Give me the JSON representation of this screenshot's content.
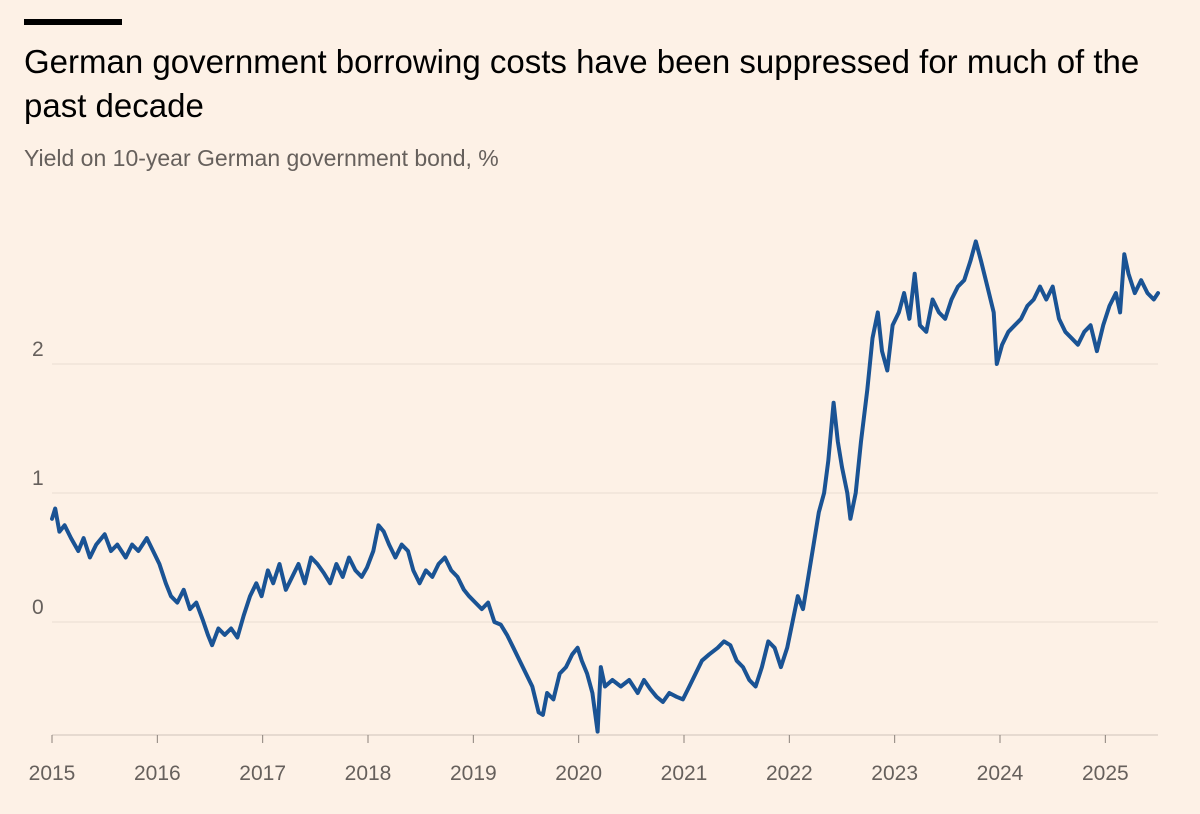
{
  "title": "German government borrowing costs have been suppressed for much of the past decade",
  "subtitle": "Yield on 10-year German government bond, %",
  "colors": {
    "background": "#fdf1e6",
    "line": "#1a5394",
    "gridline": "#e9ddd3",
    "text": "#66605c"
  },
  "chart_data": {
    "type": "line",
    "title": "German government borrowing costs have been suppressed for much of the past decade",
    "subtitle": "Yield on 10-year German government bond, %",
    "xlabel": "",
    "ylabel": "",
    "x_ticks": [
      "2015",
      "2016",
      "2017",
      "2018",
      "2019",
      "2020",
      "2021",
      "2022",
      "2023",
      "2024",
      "2025"
    ],
    "y_ticks": [
      "0",
      "1",
      "2"
    ],
    "ylim": [
      -0.9,
      3.1
    ],
    "xlim": [
      2015.0,
      2025.5
    ],
    "grid": true,
    "legend": "none",
    "series": [
      {
        "values": [
          [
            2015.0,
            0.8
          ],
          [
            2015.03,
            0.88
          ],
          [
            2015.07,
            0.7
          ],
          [
            2015.12,
            0.75
          ],
          [
            2015.18,
            0.65
          ],
          [
            2015.25,
            0.55
          ],
          [
            2015.3,
            0.65
          ],
          [
            2015.36,
            0.5
          ],
          [
            2015.42,
            0.6
          ],
          [
            2015.5,
            0.68
          ],
          [
            2015.56,
            0.55
          ],
          [
            2015.62,
            0.6
          ],
          [
            2015.7,
            0.5
          ],
          [
            2015.76,
            0.6
          ],
          [
            2015.82,
            0.55
          ],
          [
            2015.9,
            0.65
          ],
          [
            2015.96,
            0.55
          ],
          [
            2016.02,
            0.45
          ],
          [
            2016.08,
            0.3
          ],
          [
            2016.13,
            0.2
          ],
          [
            2016.19,
            0.15
          ],
          [
            2016.25,
            0.25
          ],
          [
            2016.31,
            0.1
          ],
          [
            2016.37,
            0.15
          ],
          [
            2016.43,
            0.02
          ],
          [
            2016.48,
            -0.1
          ],
          [
            2016.52,
            -0.18
          ],
          [
            2016.58,
            -0.05
          ],
          [
            2016.64,
            -0.1
          ],
          [
            2016.7,
            -0.05
          ],
          [
            2016.76,
            -0.12
          ],
          [
            2016.82,
            0.05
          ],
          [
            2016.88,
            0.2
          ],
          [
            2016.94,
            0.3
          ],
          [
            2016.99,
            0.2
          ],
          [
            2017.05,
            0.4
          ],
          [
            2017.1,
            0.3
          ],
          [
            2017.16,
            0.45
          ],
          [
            2017.22,
            0.25
          ],
          [
            2017.28,
            0.35
          ],
          [
            2017.34,
            0.45
          ],
          [
            2017.4,
            0.3
          ],
          [
            2017.46,
            0.5
          ],
          [
            2017.52,
            0.45
          ],
          [
            2017.58,
            0.38
          ],
          [
            2017.64,
            0.3
          ],
          [
            2017.7,
            0.45
          ],
          [
            2017.76,
            0.35
          ],
          [
            2017.82,
            0.5
          ],
          [
            2017.88,
            0.4
          ],
          [
            2017.94,
            0.35
          ],
          [
            2017.99,
            0.42
          ],
          [
            2018.05,
            0.55
          ],
          [
            2018.1,
            0.75
          ],
          [
            2018.15,
            0.7
          ],
          [
            2018.2,
            0.6
          ],
          [
            2018.26,
            0.5
          ],
          [
            2018.32,
            0.6
          ],
          [
            2018.38,
            0.55
          ],
          [
            2018.43,
            0.4
          ],
          [
            2018.49,
            0.3
          ],
          [
            2018.55,
            0.4
          ],
          [
            2018.61,
            0.35
          ],
          [
            2018.67,
            0.45
          ],
          [
            2018.73,
            0.5
          ],
          [
            2018.79,
            0.4
          ],
          [
            2018.85,
            0.35
          ],
          [
            2018.91,
            0.25
          ],
          [
            2018.96,
            0.2
          ],
          [
            2019.02,
            0.15
          ],
          [
            2019.08,
            0.1
          ],
          [
            2019.14,
            0.15
          ],
          [
            2019.2,
            0.0
          ],
          [
            2019.26,
            -0.02
          ],
          [
            2019.32,
            -0.1
          ],
          [
            2019.38,
            -0.2
          ],
          [
            2019.44,
            -0.3
          ],
          [
            2019.5,
            -0.4
          ],
          [
            2019.56,
            -0.5
          ],
          [
            2019.62,
            -0.7
          ],
          [
            2019.66,
            -0.72
          ],
          [
            2019.7,
            -0.55
          ],
          [
            2019.76,
            -0.6
          ],
          [
            2019.82,
            -0.4
          ],
          [
            2019.88,
            -0.35
          ],
          [
            2019.94,
            -0.25
          ],
          [
            2019.99,
            -0.2
          ],
          [
            2020.03,
            -0.3
          ],
          [
            2020.08,
            -0.4
          ],
          [
            2020.13,
            -0.55
          ],
          [
            2020.18,
            -0.85
          ],
          [
            2020.21,
            -0.35
          ],
          [
            2020.25,
            -0.5
          ],
          [
            2020.32,
            -0.45
          ],
          [
            2020.4,
            -0.5
          ],
          [
            2020.48,
            -0.45
          ],
          [
            2020.56,
            -0.55
          ],
          [
            2020.62,
            -0.45
          ],
          [
            2020.68,
            -0.52
          ],
          [
            2020.74,
            -0.58
          ],
          [
            2020.8,
            -0.62
          ],
          [
            2020.86,
            -0.55
          ],
          [
            2020.93,
            -0.58
          ],
          [
            2020.99,
            -0.6
          ],
          [
            2021.05,
            -0.5
          ],
          [
            2021.11,
            -0.4
          ],
          [
            2021.17,
            -0.3
          ],
          [
            2021.24,
            -0.25
          ],
          [
            2021.32,
            -0.2
          ],
          [
            2021.38,
            -0.15
          ],
          [
            2021.44,
            -0.18
          ],
          [
            2021.5,
            -0.3
          ],
          [
            2021.56,
            -0.35
          ],
          [
            2021.62,
            -0.45
          ],
          [
            2021.68,
            -0.5
          ],
          [
            2021.74,
            -0.35
          ],
          [
            2021.8,
            -0.15
          ],
          [
            2021.86,
            -0.2
          ],
          [
            2021.92,
            -0.35
          ],
          [
            2021.98,
            -0.2
          ],
          [
            2022.03,
            0.0
          ],
          [
            2022.08,
            0.2
          ],
          [
            2022.13,
            0.1
          ],
          [
            2022.18,
            0.35
          ],
          [
            2022.23,
            0.6
          ],
          [
            2022.28,
            0.85
          ],
          [
            2022.33,
            1.0
          ],
          [
            2022.37,
            1.25
          ],
          [
            2022.42,
            1.7
          ],
          [
            2022.46,
            1.4
          ],
          [
            2022.5,
            1.2
          ],
          [
            2022.55,
            1.0
          ],
          [
            2022.58,
            0.8
          ],
          [
            2022.63,
            1.0
          ],
          [
            2022.68,
            1.4
          ],
          [
            2022.74,
            1.8
          ],
          [
            2022.79,
            2.2
          ],
          [
            2022.84,
            2.4
          ],
          [
            2022.88,
            2.1
          ],
          [
            2022.93,
            1.95
          ],
          [
            2022.98,
            2.3
          ],
          [
            2023.04,
            2.4
          ],
          [
            2023.09,
            2.55
          ],
          [
            2023.14,
            2.35
          ],
          [
            2023.19,
            2.7
          ],
          [
            2023.24,
            2.3
          ],
          [
            2023.3,
            2.25
          ],
          [
            2023.36,
            2.5
          ],
          [
            2023.42,
            2.4
          ],
          [
            2023.48,
            2.35
          ],
          [
            2023.54,
            2.5
          ],
          [
            2023.6,
            2.6
          ],
          [
            2023.66,
            2.65
          ],
          [
            2023.72,
            2.8
          ],
          [
            2023.77,
            2.95
          ],
          [
            2023.82,
            2.8
          ],
          [
            2023.88,
            2.6
          ],
          [
            2023.94,
            2.4
          ],
          [
            2023.97,
            2.0
          ],
          [
            2024.02,
            2.15
          ],
          [
            2024.08,
            2.25
          ],
          [
            2024.14,
            2.3
          ],
          [
            2024.2,
            2.35
          ],
          [
            2024.26,
            2.45
          ],
          [
            2024.32,
            2.5
          ],
          [
            2024.38,
            2.6
          ],
          [
            2024.44,
            2.5
          ],
          [
            2024.5,
            2.6
          ],
          [
            2024.56,
            2.35
          ],
          [
            2024.62,
            2.25
          ],
          [
            2024.68,
            2.2
          ],
          [
            2024.74,
            2.15
          ],
          [
            2024.8,
            2.25
          ],
          [
            2024.86,
            2.3
          ],
          [
            2024.92,
            2.1
          ],
          [
            2024.98,
            2.3
          ],
          [
            2025.04,
            2.45
          ],
          [
            2025.1,
            2.55
          ],
          [
            2025.14,
            2.4
          ],
          [
            2025.18,
            2.85
          ],
          [
            2025.22,
            2.7
          ],
          [
            2025.28,
            2.55
          ],
          [
            2025.34,
            2.65
          ],
          [
            2025.4,
            2.55
          ],
          [
            2025.46,
            2.5
          ],
          [
            2025.5,
            2.55
          ]
        ]
      }
    ]
  }
}
